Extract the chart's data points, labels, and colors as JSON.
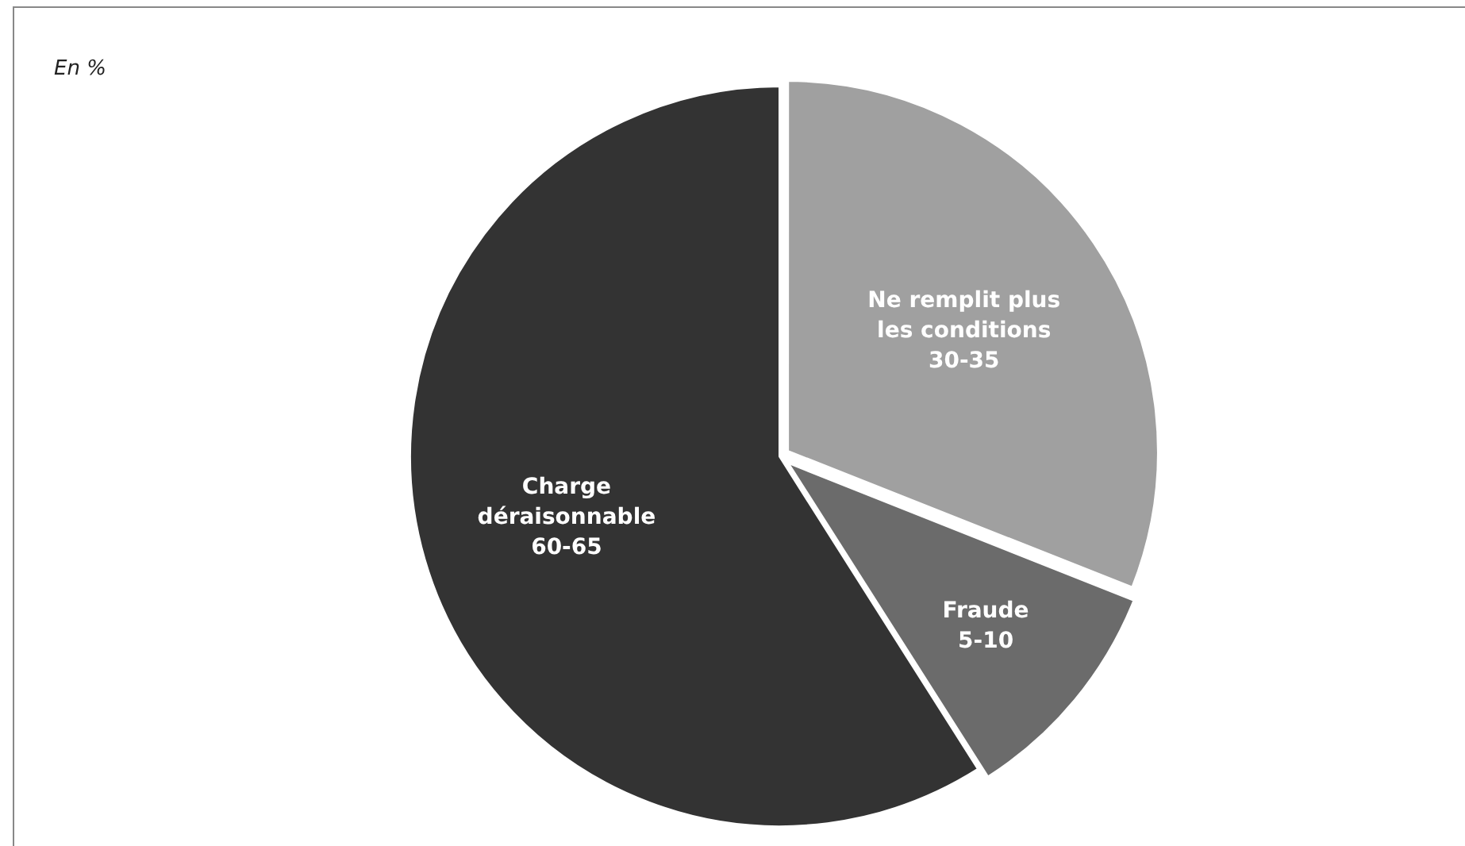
{
  "chart_data": {
    "type": "pie",
    "annotations": [
      "En %"
    ],
    "categories": [
      "Ne remplit plus les conditions",
      "Fraude",
      "Charge déraisonnable"
    ],
    "values": [
      31,
      10,
      59
    ],
    "colors": [
      "#a0a0a0",
      "#6b6b6b",
      "#333333"
    ],
    "value_labels": [
      "30-35",
      "5-10",
      "60-65"
    ],
    "legend": false
  }
}
